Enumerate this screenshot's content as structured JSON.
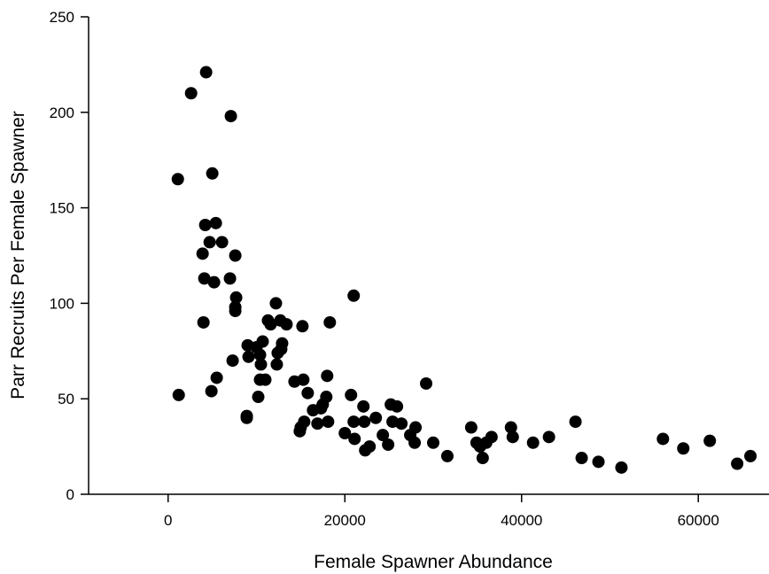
{
  "chart_data": {
    "type": "scatter",
    "title": "",
    "xlabel": "Female Spawner Abundance",
    "ylabel": "Parr Recruits Per Female Spawner",
    "xlim": [
      -9000,
      68000
    ],
    "ylim": [
      0,
      250
    ],
    "xticks": [
      0,
      20000,
      40000,
      60000
    ],
    "yticks": [
      0,
      50,
      100,
      150,
      200,
      250
    ],
    "xtick_labels": [
      "0",
      "20000",
      "40000",
      "60000"
    ],
    "ytick_labels": [
      "0",
      "50",
      "100",
      "150",
      "200",
      "250"
    ],
    "grid": false,
    "marker_color": "#000000",
    "series": [
      {
        "points": [
          [
            1100,
            165
          ],
          [
            1200,
            52
          ],
          [
            2600,
            210
          ],
          [
            4300,
            221
          ],
          [
            3900,
            126
          ],
          [
            4100,
            113
          ],
          [
            4000,
            90
          ],
          [
            4200,
            141
          ],
          [
            4700,
            132
          ],
          [
            5000,
            168
          ],
          [
            5200,
            111
          ],
          [
            5400,
            142
          ],
          [
            5500,
            61
          ],
          [
            4900,
            54
          ],
          [
            6100,
            132
          ],
          [
            7100,
            198
          ],
          [
            7000,
            113
          ],
          [
            7600,
            125
          ],
          [
            7700,
            103
          ],
          [
            7600,
            96
          ],
          [
            7600,
            98
          ],
          [
            7300,
            70
          ],
          [
            9000,
            78
          ],
          [
            9100,
            72
          ],
          [
            8900,
            41
          ],
          [
            8900,
            40
          ],
          [
            10000,
            77
          ],
          [
            10200,
            51
          ],
          [
            10400,
            60
          ],
          [
            10400,
            73
          ],
          [
            10500,
            68
          ],
          [
            10700,
            80
          ],
          [
            11000,
            60
          ],
          [
            11300,
            91
          ],
          [
            11600,
            89
          ],
          [
            12200,
            100
          ],
          [
            12300,
            68
          ],
          [
            12400,
            74
          ],
          [
            12700,
            91
          ],
          [
            12900,
            79
          ],
          [
            12800,
            76
          ],
          [
            13400,
            89
          ],
          [
            14300,
            59
          ],
          [
            14900,
            33
          ],
          [
            15000,
            35
          ],
          [
            15200,
            88
          ],
          [
            15300,
            60
          ],
          [
            15400,
            38
          ],
          [
            15800,
            53
          ],
          [
            16400,
            44
          ],
          [
            16900,
            37
          ],
          [
            17300,
            45
          ],
          [
            17500,
            47
          ],
          [
            17900,
            51
          ],
          [
            18000,
            62
          ],
          [
            18100,
            38
          ],
          [
            18300,
            90
          ],
          [
            21000,
            104
          ],
          [
            20000,
            32
          ],
          [
            20700,
            52
          ],
          [
            21000,
            38
          ],
          [
            21100,
            29
          ],
          [
            22100,
            46
          ],
          [
            22200,
            38
          ],
          [
            22300,
            23
          ],
          [
            22800,
            25
          ],
          [
            23500,
            40
          ],
          [
            24300,
            31
          ],
          [
            24900,
            26
          ],
          [
            25200,
            47
          ],
          [
            25400,
            38
          ],
          [
            25900,
            46
          ],
          [
            26400,
            37
          ],
          [
            27400,
            31
          ],
          [
            27900,
            27
          ],
          [
            28000,
            35
          ],
          [
            29200,
            58
          ],
          [
            30000,
            27
          ],
          [
            31600,
            20
          ],
          [
            34300,
            35
          ],
          [
            34900,
            27
          ],
          [
            35300,
            25
          ],
          [
            35600,
            19
          ],
          [
            36000,
            27
          ],
          [
            36600,
            30
          ],
          [
            38800,
            35
          ],
          [
            39000,
            30
          ],
          [
            41300,
            27
          ],
          [
            43100,
            30
          ],
          [
            46100,
            38
          ],
          [
            46800,
            19
          ],
          [
            48700,
            17
          ],
          [
            51300,
            14
          ],
          [
            56000,
            29
          ],
          [
            58300,
            24
          ],
          [
            61300,
            28
          ],
          [
            64400,
            16
          ],
          [
            65900,
            20
          ]
        ]
      }
    ]
  }
}
